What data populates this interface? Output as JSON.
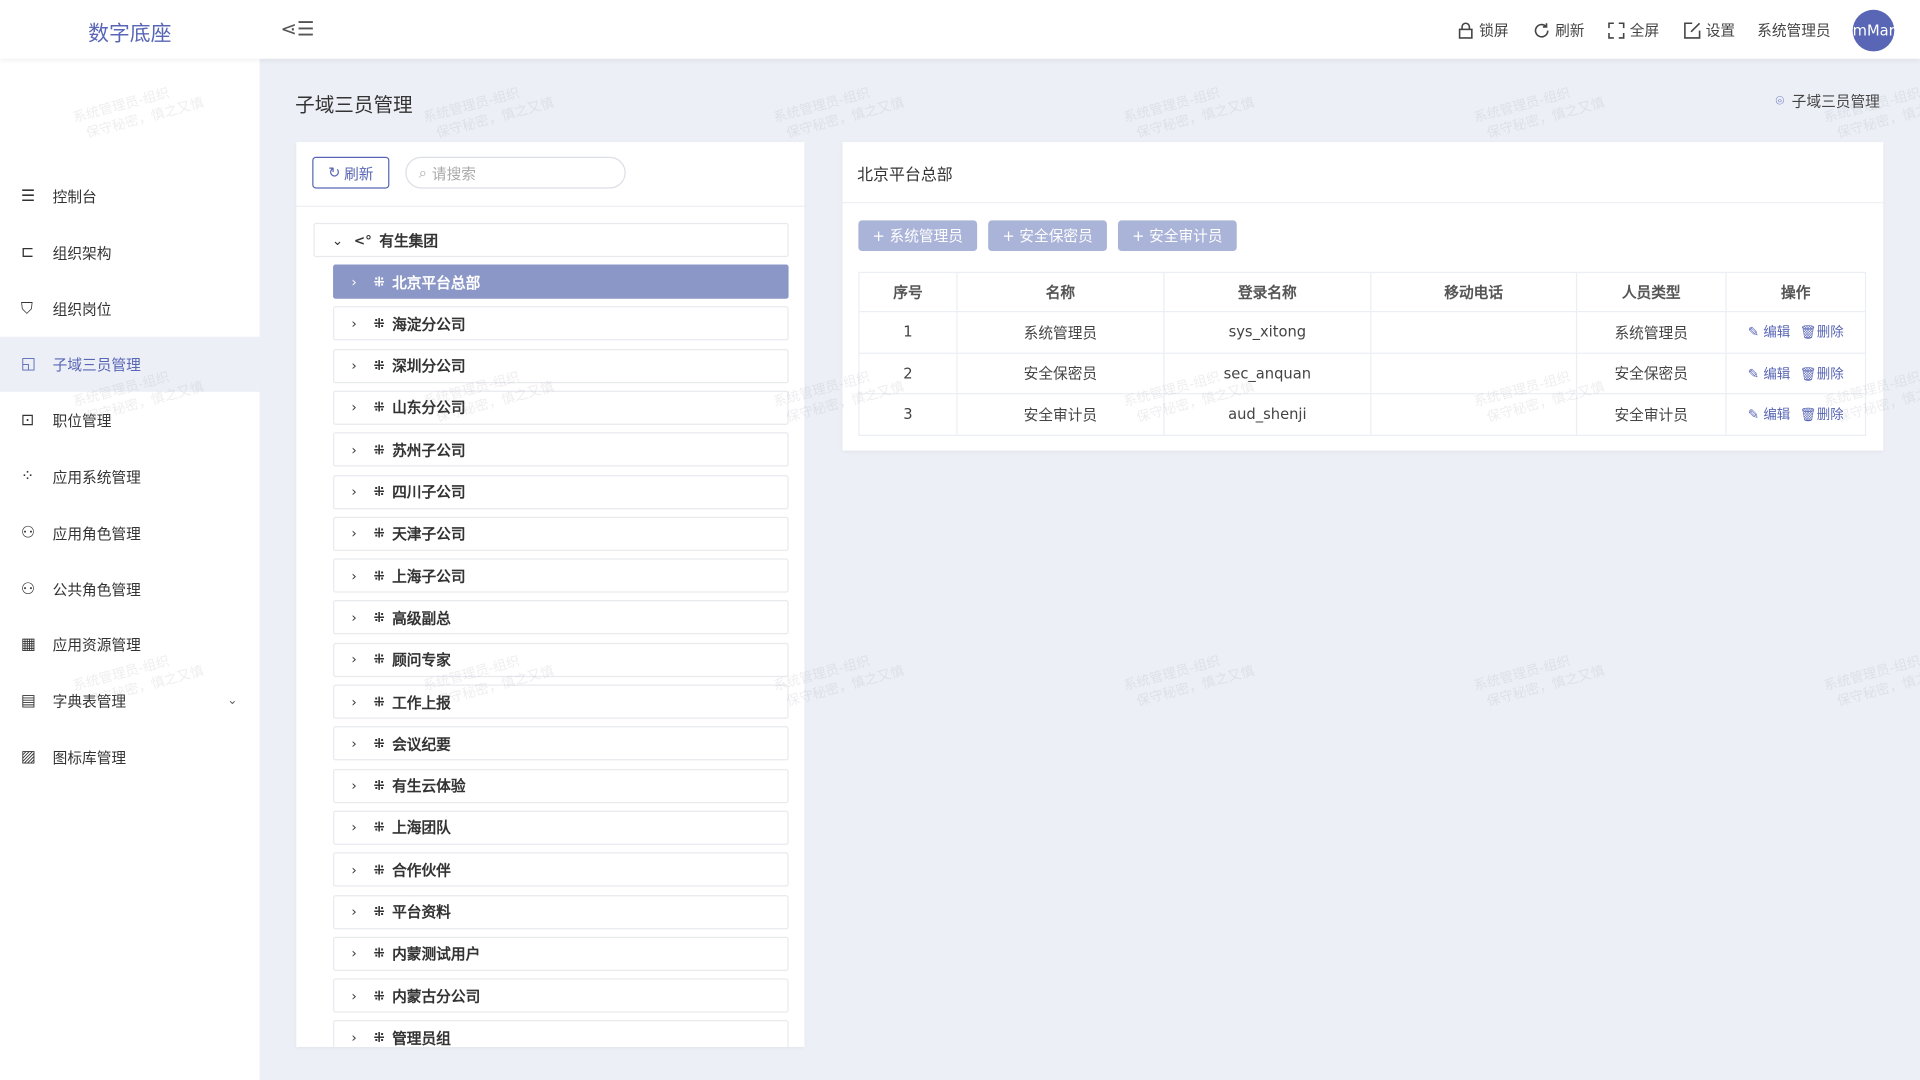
{
  "header": {
    "logo": "数字底座",
    "actions": [
      {
        "icon": "lock-icon",
        "label": "锁屏"
      },
      {
        "icon": "refresh-icon",
        "label": "刷新"
      },
      {
        "icon": "fullscreen-icon",
        "label": "全屏"
      },
      {
        "icon": "edit-icon",
        "label": "设置"
      }
    ],
    "user": "系统管理员",
    "avatar": "mMar"
  },
  "sidebar": {
    "items": [
      {
        "label": "控制台",
        "icon": "sliders-icon"
      },
      {
        "label": "组织架构",
        "icon": "org-tree-icon"
      },
      {
        "label": "组织岗位",
        "icon": "shield-user-icon"
      },
      {
        "label": "子域三员管理",
        "icon": "subdomain-icon",
        "active": true
      },
      {
        "label": "职位管理",
        "icon": "position-icon"
      },
      {
        "label": "应用系统管理",
        "icon": "apps-icon"
      },
      {
        "label": "应用角色管理",
        "icon": "user-role-icon"
      },
      {
        "label": "公共角色管理",
        "icon": "user-list-icon"
      },
      {
        "label": "应用资源管理",
        "icon": "grid-icon"
      },
      {
        "label": "字典表管理",
        "icon": "book-icon",
        "expandable": true
      },
      {
        "label": "图标库管理",
        "icon": "image-icon"
      }
    ]
  },
  "page": {
    "title": "子域三员管理",
    "breadcrumb": "子域三员管理"
  },
  "tree": {
    "refresh": "刷新",
    "search_placeholder": "请搜索",
    "root": "有生集团",
    "children": [
      "北京平台总部",
      "海淀分公司",
      "深圳分公司",
      "山东分公司",
      "苏州子公司",
      "四川子公司",
      "天津子公司",
      "上海子公司",
      "高级副总",
      "顾问专家",
      "工作上报",
      "会议纪要",
      "有生云体验",
      "上海团队",
      "合作伙伴",
      "平台资料",
      "内蒙测试用户",
      "内蒙古分公司",
      "管理员组"
    ],
    "selected": "北京平台总部"
  },
  "detail": {
    "title": "北京平台总部",
    "add_buttons": [
      "+ 系统管理员",
      "+ 安全保密员",
      "+ 安全审计员"
    ],
    "columns": [
      "序号",
      "名称",
      "登录名称",
      "移动电话",
      "人员类型",
      "操作"
    ],
    "rows": [
      {
        "no": "1",
        "name": "系统管理员",
        "login": "sys_xitong",
        "phone": "",
        "type": "系统管理员"
      },
      {
        "no": "2",
        "name": "安全保密员",
        "login": "sec_anquan",
        "phone": "",
        "type": "安全保密员"
      },
      {
        "no": "3",
        "name": "安全审计员",
        "login": "aud_shenji",
        "phone": "",
        "type": "安全审计员"
      }
    ],
    "edit": "编辑",
    "delete": "删除"
  },
  "watermark": [
    "系统管理员-组织",
    "保守秘密，慎之又慎"
  ],
  "colors": {
    "accent": "#5866b5",
    "selected": "#8b97c6",
    "add_button": "#aab3d8",
    "background": "#eceff6"
  }
}
